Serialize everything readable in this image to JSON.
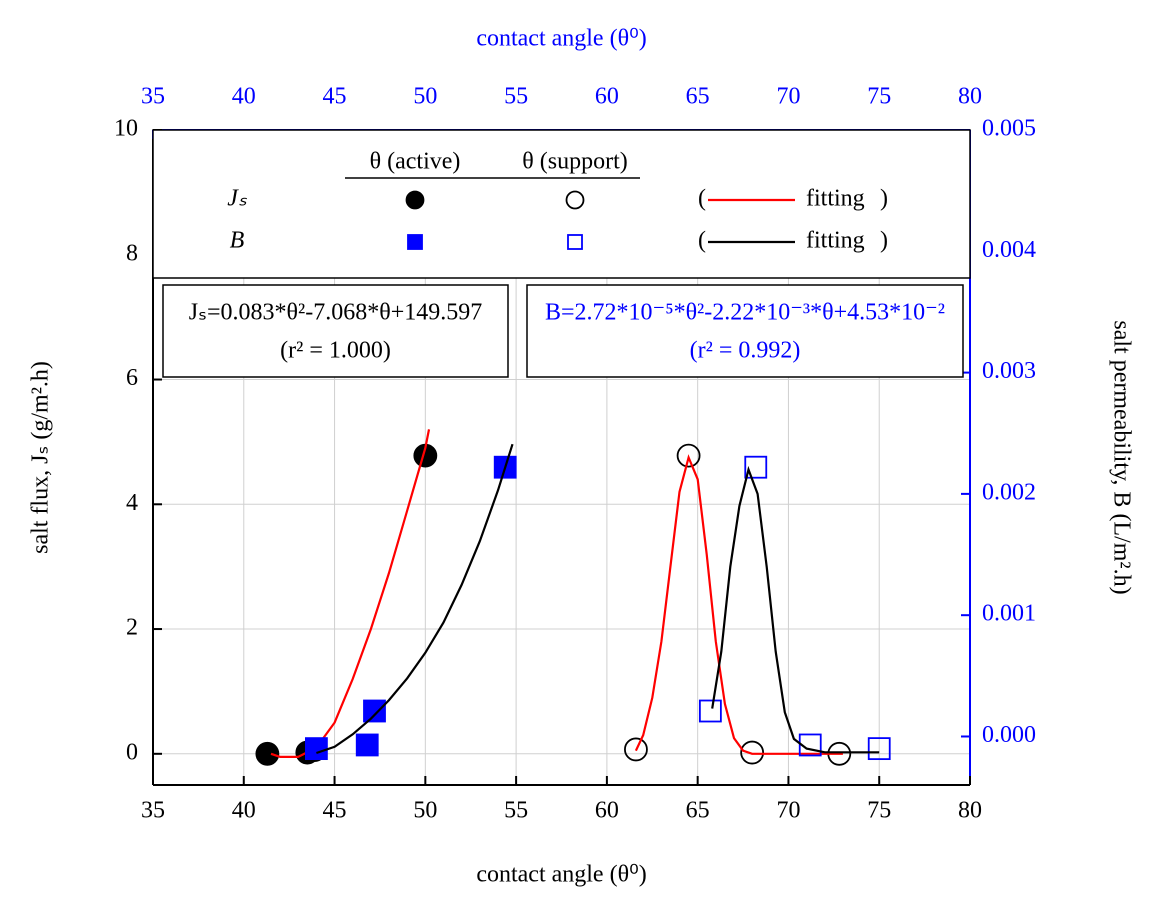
{
  "chart_data": {
    "type": "scatter",
    "xlabel": "contact angle (θ⁰)",
    "ylabel": "salt flux, Jₛ (g/m².h)",
    "y2label": "salt permeability, B (L/m².h)",
    "xlim": [
      35,
      80
    ],
    "xticks": [
      35,
      40,
      45,
      50,
      55,
      60,
      65,
      70,
      75,
      80
    ],
    "ylim": [
      -0.5,
      10
    ],
    "yticks": [
      0,
      2,
      4,
      6,
      8,
      10
    ],
    "y2lim": [
      -0.0004,
      0.005
    ],
    "y2ticks": [
      {
        "value": 0,
        "label": "0.000"
      },
      0.001,
      0.002,
      0.003,
      0.004,
      0.005
    ],
    "grid": true,
    "axis_color": "#000000",
    "secondary_color": "#0000ff",
    "legend": {
      "columns": [
        "θ (active)",
        "θ (support)"
      ],
      "rows": [
        "Jₛ",
        "B"
      ],
      "brackets": [
        "(",
        ")"
      ]
    },
    "annotations": [
      {
        "lines": [
          "Jₛ=0.083*θ²-7.068*θ+149.597",
          "(r² = 1.000)"
        ],
        "color": "#000000"
      },
      {
        "lines": [
          "B=2.72*10⁻⁵*θ²-2.22*10⁻³*θ+4.53*10⁻²",
          "(r² = 0.992)"
        ],
        "color": "#0000ff"
      }
    ],
    "series": [
      {
        "marker": "circle",
        "filled": true,
        "color": "#000000",
        "x": [
          41.3,
          43.5,
          43.9,
          50.0
        ],
        "values": [
          0.0,
          0.02,
          0.06,
          4.78
        ]
      },
      {
        "marker": "circle",
        "filled": false,
        "color": "#000000",
        "x": [
          61.6,
          64.5,
          68.0,
          72.8
        ],
        "values": [
          0.07,
          4.78,
          0.02,
          0.0
        ]
      },
      {
        "name": "fitting",
        "marker": "line",
        "color": "#ff0000",
        "x": [
          41.5,
          42,
          43,
          44,
          45,
          46,
          47,
          48,
          49,
          50,
          50.2,
          null,
          61.6,
          62,
          62.5,
          63,
          63.5,
          64,
          64.5,
          65,
          65.5,
          66,
          66.5,
          67,
          67.5,
          68,
          69,
          70,
          71,
          72,
          73
        ],
        "values": [
          0.0,
          -0.05,
          -0.05,
          0.1,
          0.5,
          1.2,
          2.0,
          2.9,
          3.9,
          4.9,
          5.2,
          null,
          0.05,
          0.3,
          0.9,
          1.8,
          3.0,
          4.2,
          4.75,
          4.4,
          3.2,
          1.8,
          0.8,
          0.25,
          0.05,
          0.0,
          0.0,
          0.0,
          0.0,
          0.0,
          0.0
        ]
      },
      {
        "marker": "square",
        "filled": true,
        "color": "#0000ff",
        "axis": "y2",
        "x": [
          44.0,
          46.8,
          47.2,
          54.4
        ],
        "values": [
          -0.0001,
          -7e-05,
          0.00021,
          0.00222
        ]
      },
      {
        "marker": "square",
        "filled": false,
        "color": "#0000ff",
        "axis": "y2",
        "x": [
          65.7,
          68.2,
          71.2,
          75.0
        ],
        "values": [
          0.00021,
          0.00222,
          -7e-05,
          -0.0001
        ]
      },
      {
        "name": "fitting",
        "marker": "line",
        "color": "#000000",
        "axis": "y2",
        "x": [
          44,
          45,
          46,
          47,
          48,
          49,
          50,
          51,
          52,
          53,
          54,
          54.8,
          null,
          65.8,
          66.3,
          66.8,
          67.3,
          67.8,
          68.3,
          68.8,
          69.3,
          69.8,
          70.3,
          71,
          72,
          75
        ],
        "values": [
          -0.000136,
          -8.5e-05,
          1.8e-05,
          0.000147,
          0.0003,
          0.00048,
          0.00069,
          0.00094,
          0.00125,
          0.00161,
          0.00203,
          0.00241,
          null,
          0.00023,
          0.0007,
          0.0014,
          0.0019,
          0.0022,
          0.002,
          0.0014,
          0.0007,
          0.0002,
          -2e-05,
          -0.0001,
          -0.00013,
          -0.00013
        ]
      }
    ]
  }
}
